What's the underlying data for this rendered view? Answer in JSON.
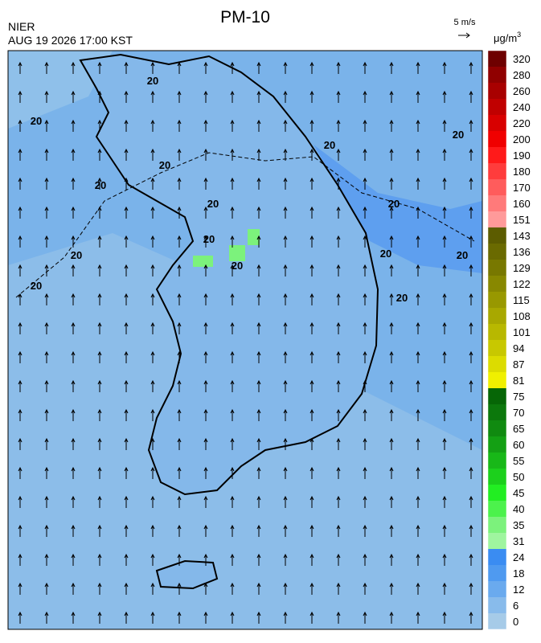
{
  "header": {
    "title": "PM-10",
    "source": "NIER",
    "datetime": "AUG 19 2026 17:00 KST",
    "wind_scale": "5 m/s",
    "unit": "μg/m",
    "unit_exponent": "3"
  },
  "map": {
    "contour_label": "20"
  },
  "colorbar": {
    "levels": [
      0,
      6,
      12,
      18,
      24,
      31,
      35,
      40,
      45,
      50,
      55,
      60,
      65,
      70,
      75,
      81,
      87,
      94,
      101,
      108,
      115,
      122,
      129,
      136,
      143,
      151,
      160,
      170,
      180,
      190,
      200,
      220,
      240,
      260,
      280,
      320
    ],
    "colors": [
      "#a6cbe8",
      "#88bbeb",
      "#6aaaee",
      "#4f9af0",
      "#3a8cf2",
      "#9ff59f",
      "#7cf27c",
      "#4cf24c",
      "#22ee22",
      "#1cd01c",
      "#18b818",
      "#14a014",
      "#108a10",
      "#0c780c",
      "#066606",
      "#f0f000",
      "#dcdc00",
      "#c8c800",
      "#b8b800",
      "#a8a800",
      "#989800",
      "#888800",
      "#787800",
      "#6a6a00",
      "#5c5c00",
      "#ff9a9a",
      "#ff7a7a",
      "#ff5c5c",
      "#ff3c3c",
      "#ff1a1a",
      "#f00000",
      "#d80000",
      "#c00000",
      "#a80000",
      "#900000",
      "#6e0000"
    ]
  }
}
